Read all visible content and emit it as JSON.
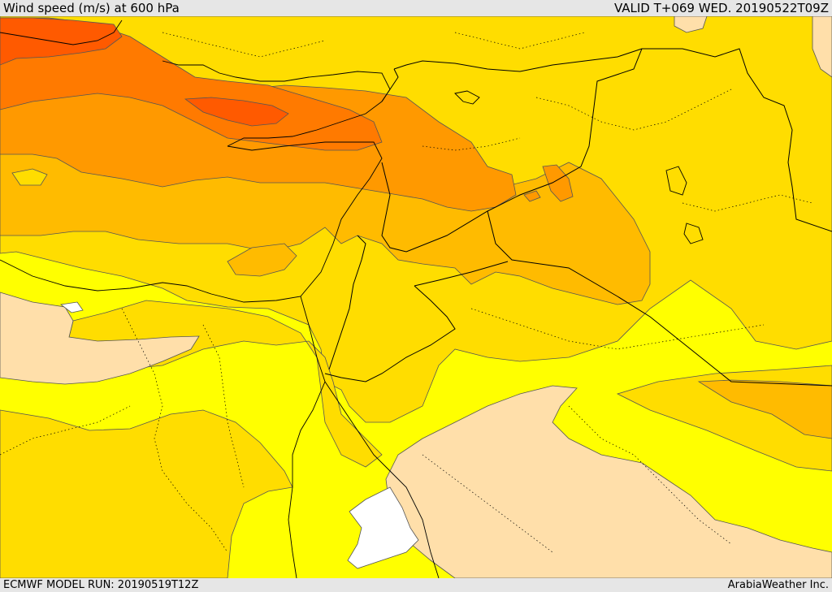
{
  "header": {
    "title": "Wind speed (m/s) at 600 hPa",
    "valid_time": "VALID T+069 WED. 20190522T09Z"
  },
  "footer": {
    "model_run": "ECMWF MODEL RUN: 20190519T12Z",
    "credit": "ArabiaWeather Inc."
  },
  "colors": {
    "band_lt5": "#ffffff",
    "band_5_10": "#ffdfaa",
    "band_10_15": "#ffff00",
    "band_15_20": "#ffdd00",
    "band_20_25": "#ffbb00",
    "band_25_30": "#ff9900",
    "band_30_35": "#ff7a00",
    "band_gt35": "#ff5a00",
    "contour": "#555555",
    "border": "#000000"
  }
}
